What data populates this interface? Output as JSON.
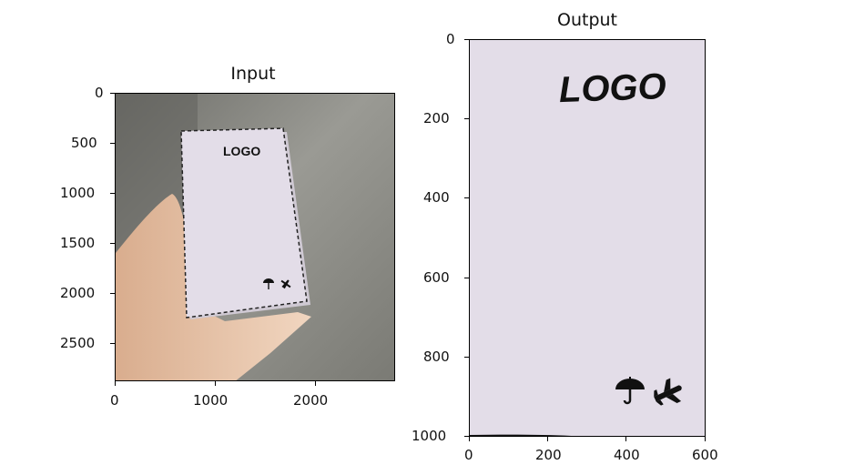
{
  "panels": [
    {
      "id": "input",
      "title": "Input",
      "x_ticks": [
        "0",
        "1000",
        "2000"
      ],
      "y_ticks": [
        "0",
        "500",
        "1000",
        "1500",
        "2000",
        "2500"
      ],
      "card_text": "LOGO"
    },
    {
      "id": "output",
      "title": "Output",
      "x_ticks": [
        "0",
        "200",
        "400",
        "600"
      ],
      "y_ticks": [
        "0",
        "200",
        "400",
        "600",
        "800",
        "1000"
      ],
      "card_text": "LOGO"
    }
  ],
  "colors": {
    "card": "#e3dde8",
    "background_photo": "#8a8a84",
    "skin": "#e9c9ae"
  }
}
